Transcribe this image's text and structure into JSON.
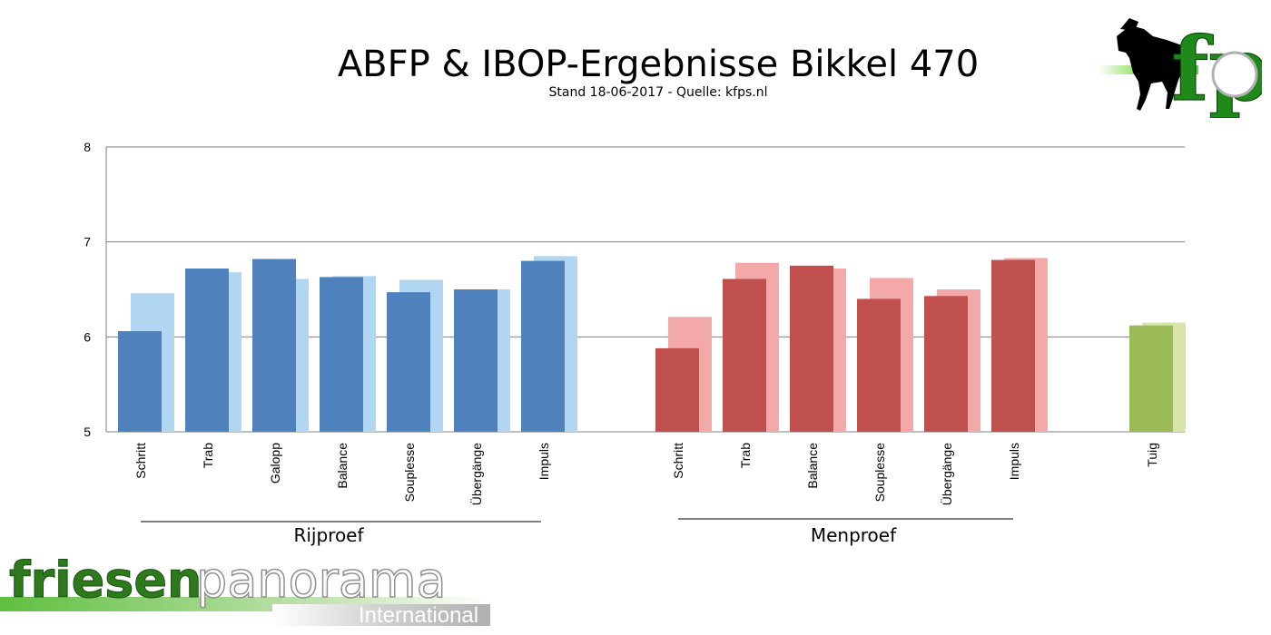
{
  "header": {
    "title": "ABFP & IBOP-Ergebnisse Bikkel 470",
    "subtitle": "Stand 18-06-2017 - Quelle: kfps.nl"
  },
  "logos": {
    "top_right": "fp",
    "bottom_left_main_1": "friesen",
    "bottom_left_main_2": "panorama",
    "bottom_left_sub": "International"
  },
  "groups": {
    "rijproef": "Rijproef",
    "menproef": "Menproef"
  },
  "colors": {
    "rij_main": "#4f81bd",
    "rij_light": "#b0d6f2",
    "men_main": "#c0504d",
    "men_light": "#f2a9a8",
    "tuig_main": "#9bbb59",
    "tuig_light": "#d7e4aa",
    "grid": "#808080"
  },
  "chart_data": {
    "type": "bar",
    "ylim": [
      5,
      8
    ],
    "yticks": [
      5,
      6,
      7,
      8
    ],
    "categories": [
      "Schritt",
      "Trab",
      "Galopp",
      "Balance",
      "Souplesse",
      "Übergänge",
      "Impuls",
      "Schritt",
      "Trab",
      "Balance",
      "Souplesse",
      "Übergänge",
      "Impuls",
      "Tuig"
    ],
    "groups": [
      "Rijproef",
      "Rijproef",
      "Rijproef",
      "Rijproef",
      "Rijproef",
      "Rijproef",
      "Rijproef",
      "Menproef",
      "Menproef",
      "Menproef",
      "Menproef",
      "Menproef",
      "Menproef",
      ""
    ],
    "series": [
      {
        "values": [
          6.06,
          6.72,
          6.82,
          6.63,
          6.47,
          6.5,
          6.8,
          5.88,
          6.61,
          6.75,
          6.4,
          6.43,
          6.81,
          6.12
        ]
      },
      {
        "values": [
          6.46,
          6.68,
          6.61,
          6.64,
          6.6,
          6.5,
          6.85,
          6.21,
          6.78,
          6.72,
          6.62,
          6.5,
          6.83,
          6.15
        ]
      }
    ]
  }
}
